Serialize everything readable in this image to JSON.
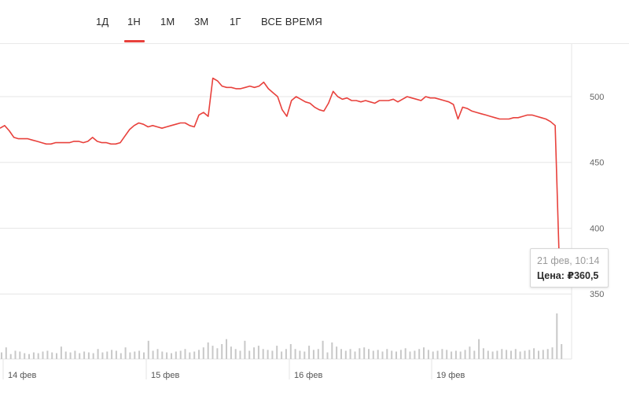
{
  "tabs": [
    {
      "label": "1Д"
    },
    {
      "label": "1Н",
      "active": true
    },
    {
      "label": "1М"
    },
    {
      "label": "3М"
    },
    {
      "label": "1Г"
    },
    {
      "label": "ВСЕ ВРЕМЯ"
    }
  ],
  "colors": {
    "price_line": "#e8413c",
    "volume_bar": "#c8c8c8",
    "grid": "#e6e6e6",
    "active_tab": "#e8413c"
  },
  "tooltip": {
    "date": "21 фев, 10:14",
    "price_label": "Цена:",
    "price_value": "₽360,5"
  },
  "chart_data": {
    "type": "line",
    "y_ticks": [
      350,
      400,
      450,
      500
    ],
    "y_tick_labels": [
      "350",
      "400",
      "450",
      "500"
    ],
    "ylim": [
      337,
      540
    ],
    "x_labels": [
      "14 фев",
      "15 фев",
      "16 фев",
      "19 фев"
    ],
    "grid": true,
    "y_axis_position": "right",
    "series": [
      {
        "values": [
          476,
          478,
          474,
          469,
          468,
          468,
          468,
          467,
          466,
          465,
          464,
          464,
          465,
          465,
          465,
          465,
          466,
          466,
          465,
          466,
          469,
          466,
          465,
          465,
          464,
          464,
          465,
          470,
          475,
          478,
          480,
          479,
          477,
          478,
          477,
          476,
          477,
          478,
          479,
          480,
          480,
          478,
          477,
          486,
          488,
          485,
          514,
          512,
          508,
          507,
          507,
          506,
          506,
          507,
          508,
          507,
          508,
          511,
          506,
          503,
          500,
          490,
          485,
          497,
          500,
          498,
          496,
          495,
          492,
          490,
          489,
          495,
          504,
          500,
          498,
          499,
          497,
          497,
          496,
          497,
          496,
          495,
          497,
          497,
          497,
          498,
          496,
          498,
          500,
          499,
          498,
          497,
          500,
          499,
          499,
          498,
          497,
          496,
          494,
          483,
          492,
          491,
          489,
          488,
          487,
          486,
          485,
          484,
          483,
          483,
          483,
          484,
          484,
          485,
          486,
          486,
          485,
          484,
          483,
          481,
          478,
          361,
          361
        ]
      }
    ],
    "volume": [
      8,
      14,
      6,
      10,
      9,
      7,
      6,
      8,
      7,
      9,
      10,
      8,
      7,
      15,
      9,
      8,
      10,
      7,
      9,
      8,
      7,
      12,
      8,
      9,
      11,
      10,
      7,
      14,
      8,
      9,
      10,
      8,
      22,
      10,
      12,
      9,
      8,
      7,
      9,
      10,
      12,
      8,
      9,
      11,
      14,
      20,
      16,
      13,
      18,
      24,
      15,
      12,
      10,
      22,
      10,
      14,
      16,
      12,
      11,
      10,
      16,
      9,
      12,
      18,
      12,
      10,
      9,
      16,
      11,
      12,
      22,
      8,
      20,
      15,
      12,
      10,
      12,
      9,
      13,
      14,
      12,
      10,
      11,
      9,
      12,
      10,
      9,
      11,
      13,
      9,
      10,
      12,
      14,
      11,
      9,
      10,
      12,
      11,
      9,
      10,
      9,
      11,
      15,
      10,
      24,
      13,
      10,
      9,
      10,
      12,
      11,
      10,
      12,
      9,
      10,
      11,
      13,
      10,
      11,
      12,
      14,
      55,
      18
    ]
  }
}
